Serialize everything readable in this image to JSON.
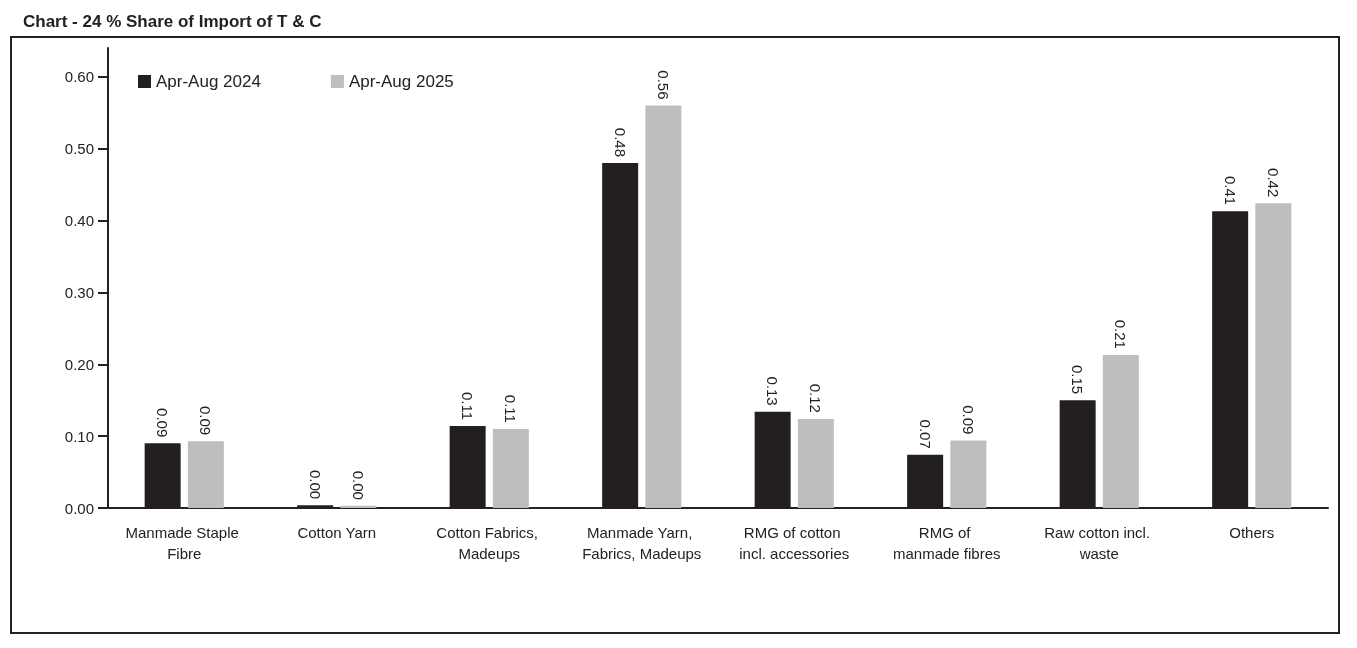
{
  "chart_data": {
    "type": "bar",
    "title": "Chart - 24 % Share of Import of T & C",
    "categories": [
      "Manmade Staple Fibre",
      "Cotton Yarn",
      "Cotton Fabrics, Madeups",
      "Manmade Yarn, Fabrics, Madeups",
      "RMG of cotton incl. accessories",
      "RMG of manmade fibres",
      "Raw cotton incl. waste",
      "Others"
    ],
    "series": [
      {
        "name": "Apr-Aug 2024",
        "color": "#231f20",
        "values": [
          0.09,
          0.004,
          0.114,
          0.48,
          0.134,
          0.074,
          0.15,
          0.413
        ],
        "value_labels": [
          "0.09",
          "0.00",
          "0.11",
          "0.48",
          "0.13",
          "0.07",
          "0.15",
          "0.41"
        ]
      },
      {
        "name": "Apr-Aug 2025",
        "color": "#bcbec0",
        "values": [
          0.093,
          0.003,
          0.11,
          0.56,
          0.124,
          0.094,
          0.213,
          0.424
        ],
        "value_labels": [
          "0.09",
          "0.00",
          "0.11",
          "0.56",
          "0.12",
          "0.09",
          "0.21",
          "0.42"
        ]
      }
    ],
    "ylim": [
      0,
      0.64
    ],
    "yticks": [
      "0.00",
      "0.10",
      "0.20",
      "0.30",
      "0.40",
      "0.50",
      "0.60"
    ],
    "grid": false,
    "legend": "top left"
  }
}
